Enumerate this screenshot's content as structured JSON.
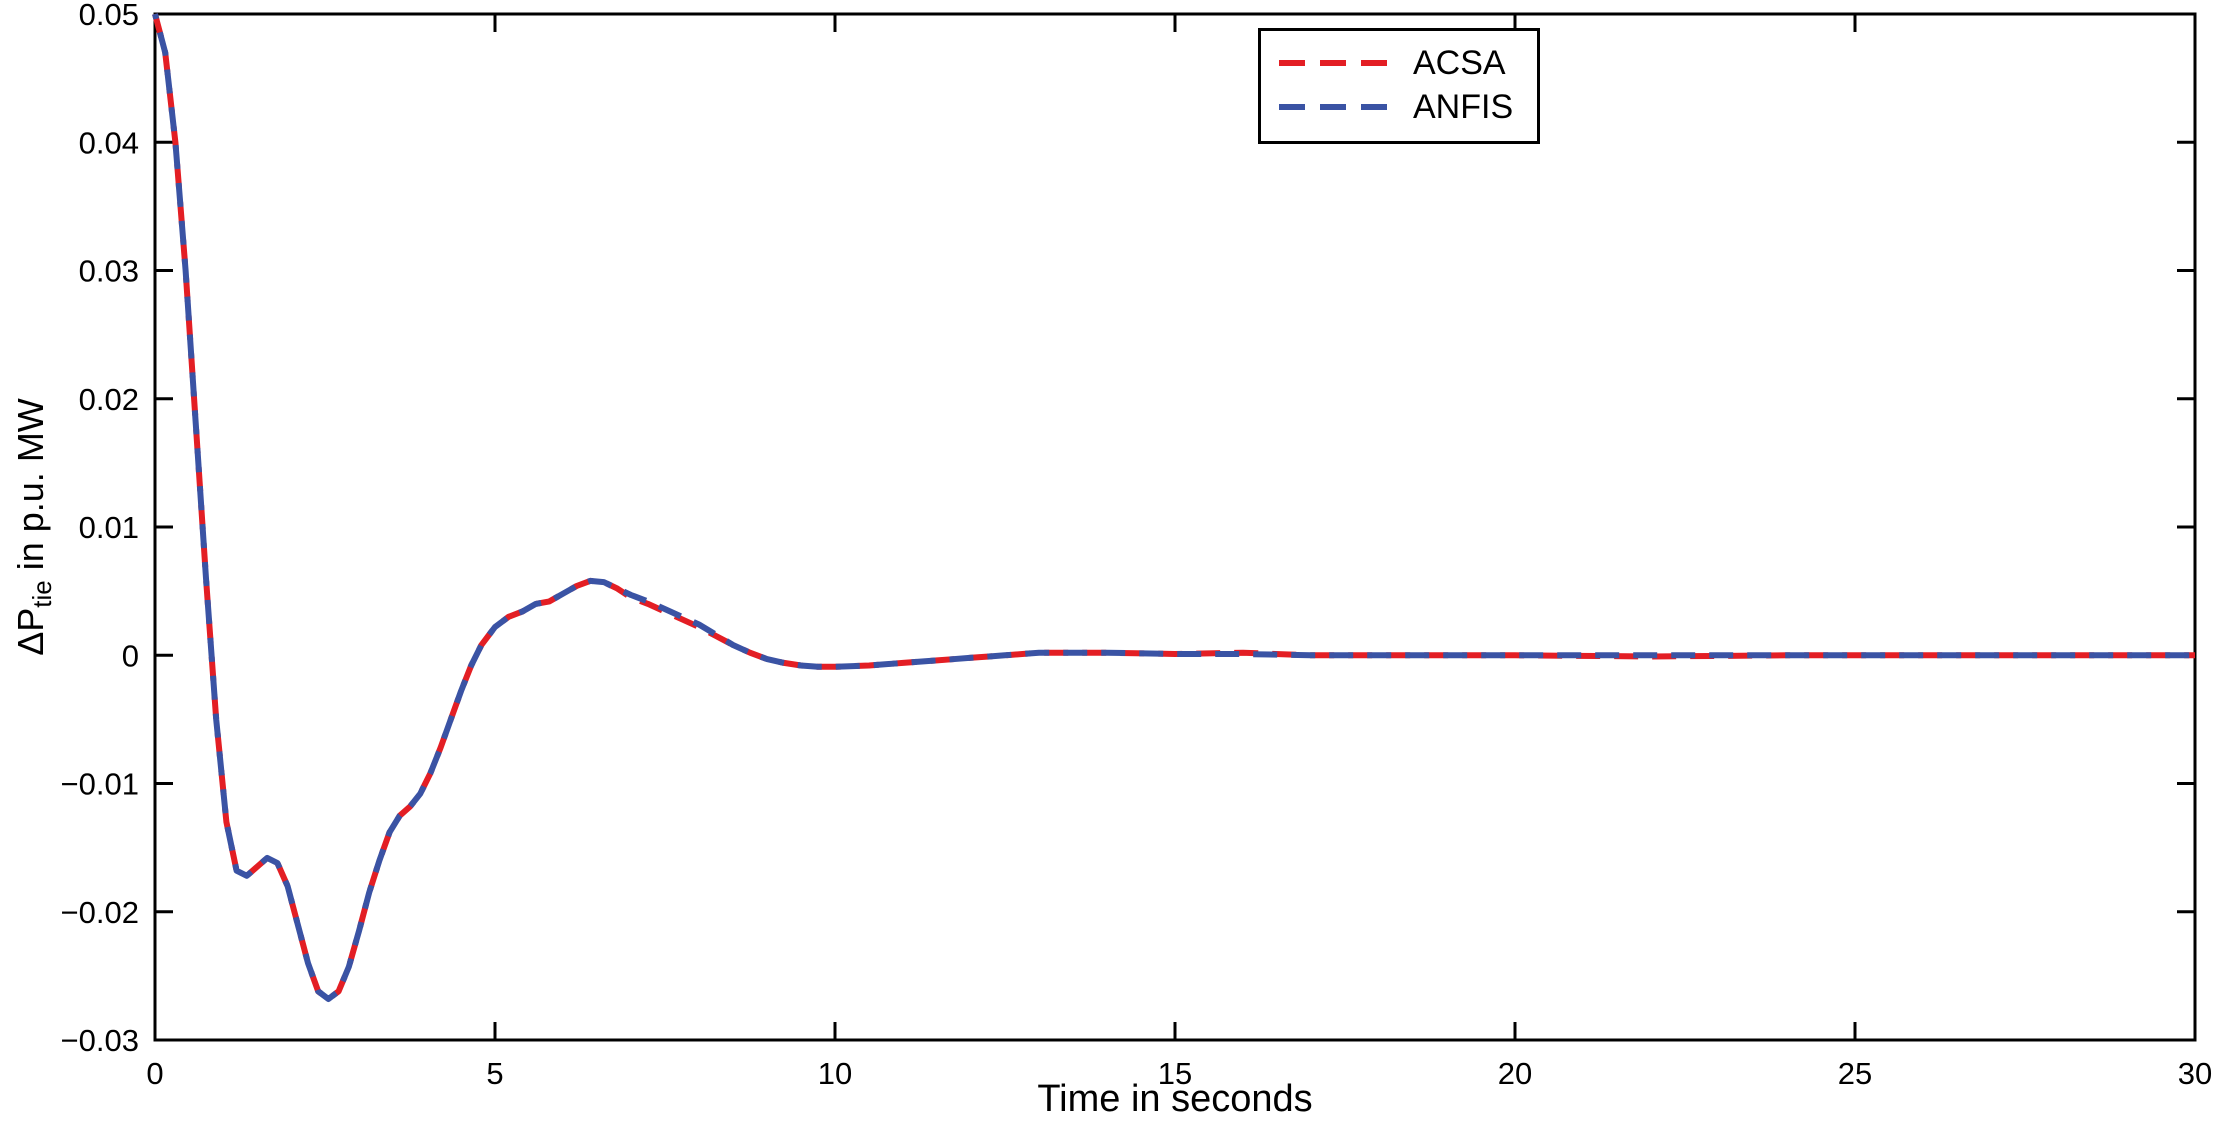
{
  "chart_data": {
    "type": "line",
    "title": "",
    "xlabel": "Time in seconds",
    "ylabel": {
      "main": "ΔP",
      "sub": "tie",
      "rest": " in p.u. MW"
    },
    "xlim": [
      0,
      30
    ],
    "ylim": [
      -0.03,
      0.05
    ],
    "grid": false,
    "frame": true,
    "x_ticks": [
      0,
      5,
      10,
      15,
      20,
      25,
      30
    ],
    "x_tick_labels": [
      "0",
      "5",
      "10",
      "15",
      "20",
      "25",
      "30"
    ],
    "y_ticks": [
      -0.03,
      -0.02,
      -0.01,
      0,
      0.01,
      0.02,
      0.03,
      0.04,
      0.05
    ],
    "y_tick_labels": [
      "−0.03",
      "−0.02",
      "−0.01",
      "0",
      "0.01",
      "0.02",
      "0.03",
      "0.04",
      "0.05"
    ],
    "legend": {
      "position": "northeast",
      "entries": [
        "ACSA",
        "ANFIS"
      ]
    },
    "series": [
      {
        "name": "ACSA",
        "color": "#e31e24",
        "line_style": "dashed",
        "dash": "24 14",
        "points": [
          [
            0,
            0.05
          ],
          [
            0.15,
            0.047
          ],
          [
            0.3,
            0.04
          ],
          [
            0.45,
            0.03
          ],
          [
            0.6,
            0.018
          ],
          [
            0.75,
            0.006
          ],
          [
            0.9,
            -0.005
          ],
          [
            1.05,
            -0.013
          ],
          [
            1.2,
            -0.0168
          ],
          [
            1.35,
            -0.0172
          ],
          [
            1.5,
            -0.0165
          ],
          [
            1.65,
            -0.0158
          ],
          [
            1.8,
            -0.0162
          ],
          [
            1.95,
            -0.018
          ],
          [
            2.1,
            -0.021
          ],
          [
            2.25,
            -0.024
          ],
          [
            2.4,
            -0.0262
          ],
          [
            2.55,
            -0.0268
          ],
          [
            2.7,
            -0.0262
          ],
          [
            2.85,
            -0.0243
          ],
          [
            3,
            -0.0215
          ],
          [
            3.15,
            -0.0185
          ],
          [
            3.3,
            -0.016
          ],
          [
            3.45,
            -0.0138
          ],
          [
            3.6,
            -0.0125
          ],
          [
            3.75,
            -0.0118
          ],
          [
            3.9,
            -0.0108
          ],
          [
            4.05,
            -0.0092
          ],
          [
            4.2,
            -0.0072
          ],
          [
            4.35,
            -0.005
          ],
          [
            4.5,
            -0.0028
          ],
          [
            4.65,
            -0.0008
          ],
          [
            4.8,
            0.0008
          ],
          [
            5,
            0.0022
          ],
          [
            5.2,
            0.003
          ],
          [
            5.4,
            0.0034
          ],
          [
            5.6,
            0.004
          ],
          [
            5.8,
            0.0042
          ],
          [
            6,
            0.0048
          ],
          [
            6.2,
            0.0054
          ],
          [
            6.4,
            0.0058
          ],
          [
            6.6,
            0.0057
          ],
          [
            6.8,
            0.0052
          ],
          [
            7,
            0.0045
          ],
          [
            7.25,
            0.004
          ],
          [
            7.5,
            0.0034
          ],
          [
            7.75,
            0.0028
          ],
          [
            8,
            0.0022
          ],
          [
            8.25,
            0.0015
          ],
          [
            8.5,
            0.0008
          ],
          [
            8.75,
            0.0002
          ],
          [
            9,
            -0.0003
          ],
          [
            9.25,
            -0.0006
          ],
          [
            9.5,
            -0.0008
          ],
          [
            9.75,
            -0.0009
          ],
          [
            10,
            -0.0009
          ],
          [
            10.5,
            -0.0008
          ],
          [
            11,
            -0.0006
          ],
          [
            11.5,
            -0.0004
          ],
          [
            12,
            -0.0002
          ],
          [
            12.5,
            0
          ],
          [
            13,
            0.0002
          ],
          [
            13.5,
            0.0002
          ],
          [
            14,
            0.0002
          ],
          [
            15,
            0.0001
          ],
          [
            16,
            0.0002
          ],
          [
            17,
            0
          ],
          [
            18,
            0
          ],
          [
            20,
            0
          ],
          [
            22,
            -0.0001
          ],
          [
            24,
            0
          ],
          [
            26,
            0
          ],
          [
            28,
            0
          ],
          [
            30,
            0
          ]
        ]
      },
      {
        "name": "ANFIS",
        "color": "#3a53a4",
        "line_style": "dashed",
        "dash": "24 14",
        "points": [
          [
            0,
            0.05
          ],
          [
            0.15,
            0.047
          ],
          [
            0.3,
            0.04
          ],
          [
            0.45,
            0.03
          ],
          [
            0.6,
            0.018
          ],
          [
            0.75,
            0.006
          ],
          [
            0.9,
            -0.005
          ],
          [
            1.05,
            -0.013
          ],
          [
            1.2,
            -0.0168
          ],
          [
            1.35,
            -0.0172
          ],
          [
            1.5,
            -0.0165
          ],
          [
            1.65,
            -0.0158
          ],
          [
            1.8,
            -0.0162
          ],
          [
            1.95,
            -0.018
          ],
          [
            2.1,
            -0.021
          ],
          [
            2.25,
            -0.024
          ],
          [
            2.4,
            -0.0262
          ],
          [
            2.55,
            -0.0268
          ],
          [
            2.7,
            -0.0262
          ],
          [
            2.85,
            -0.0243
          ],
          [
            3,
            -0.0215
          ],
          [
            3.15,
            -0.0185
          ],
          [
            3.3,
            -0.016
          ],
          [
            3.45,
            -0.0138
          ],
          [
            3.6,
            -0.0125
          ],
          [
            3.75,
            -0.0118
          ],
          [
            3.9,
            -0.0108
          ],
          [
            4.05,
            -0.0092
          ],
          [
            4.2,
            -0.0072
          ],
          [
            4.35,
            -0.005
          ],
          [
            4.5,
            -0.0028
          ],
          [
            4.65,
            -0.0008
          ],
          [
            4.8,
            0.0008
          ],
          [
            5,
            0.0022
          ],
          [
            5.2,
            0.003
          ],
          [
            5.4,
            0.0034
          ],
          [
            5.6,
            0.004
          ],
          [
            5.8,
            0.0042
          ],
          [
            6,
            0.0048
          ],
          [
            6.2,
            0.0054
          ],
          [
            6.4,
            0.0058
          ],
          [
            6.6,
            0.0057
          ],
          [
            6.8,
            0.0052
          ],
          [
            7,
            0.0047
          ],
          [
            7.25,
            0.0042
          ],
          [
            7.5,
            0.0036
          ],
          [
            7.75,
            0.003
          ],
          [
            8,
            0.0024
          ],
          [
            8.25,
            0.0016
          ],
          [
            8.5,
            0.0008
          ],
          [
            8.75,
            0.0002
          ],
          [
            9,
            -0.0003
          ],
          [
            9.25,
            -0.0006
          ],
          [
            9.5,
            -0.0008
          ],
          [
            9.75,
            -0.0009
          ],
          [
            10,
            -0.0009
          ],
          [
            10.5,
            -0.0008
          ],
          [
            11,
            -0.0006
          ],
          [
            11.5,
            -0.0004
          ],
          [
            12,
            -0.0002
          ],
          [
            12.5,
            0
          ],
          [
            13,
            0.0002
          ],
          [
            13.5,
            0.0002
          ],
          [
            14,
            0.0002
          ],
          [
            15,
            0.0001
          ],
          [
            16,
            0.0001
          ],
          [
            17,
            0
          ],
          [
            18,
            0
          ],
          [
            20,
            0
          ],
          [
            22,
            0
          ],
          [
            24,
            0
          ],
          [
            26,
            0
          ],
          [
            28,
            0
          ],
          [
            30,
            0
          ]
        ]
      }
    ]
  },
  "layout": {
    "axis_color": "#000000",
    "background": "#ffffff"
  }
}
